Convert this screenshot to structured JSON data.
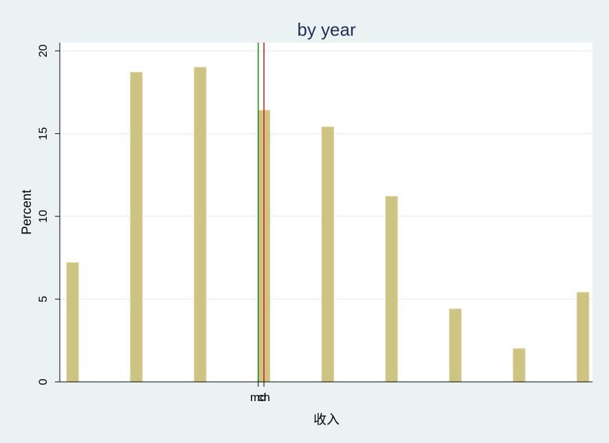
{
  "chart_data": {
    "type": "bar",
    "title": "by year",
    "xlabel": "收入",
    "ylabel": "Percent",
    "ylim": [
      0,
      20.5
    ],
    "yticks": [
      0,
      5,
      10,
      15,
      20
    ],
    "grid": true,
    "x": [
      1,
      2,
      3,
      4,
      5,
      6,
      7,
      8,
      9
    ],
    "xlim": [
      0.8,
      9.15
    ],
    "values": [
      7.2,
      18.7,
      19.0,
      16.4,
      15.4,
      11.2,
      4.4,
      2.0,
      5.4
    ],
    "reference_lines": [
      {
        "label": "md",
        "x": 3.91,
        "color": "#1a8a1a"
      },
      {
        "label": "ch",
        "x": 4.0,
        "color": "#d42020"
      }
    ],
    "bar_color": "#cdc382",
    "bar_edge_color": "#d8cf94"
  }
}
